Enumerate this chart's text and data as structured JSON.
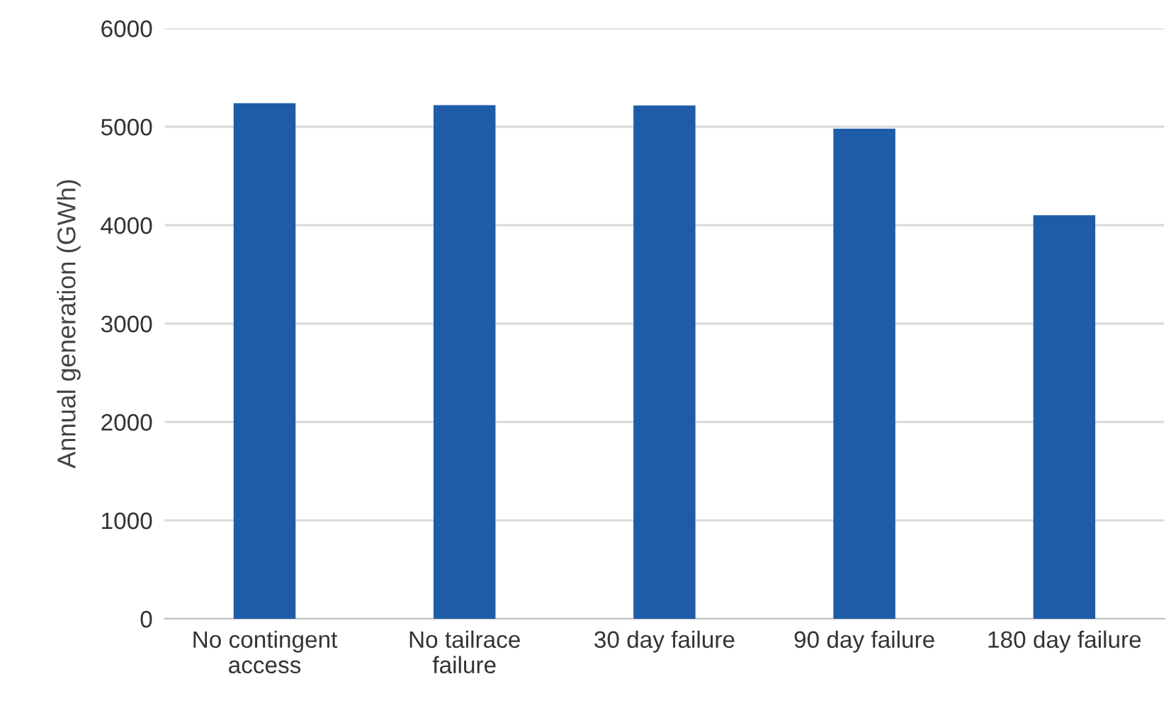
{
  "chart_data": {
    "type": "bar",
    "ylabel": "Annual generation (GWh)",
    "categories": [
      "No contingent\naccess",
      "No tailrace\nfailure",
      "30 day failure",
      "90 day failure",
      "180 day failure"
    ],
    "values": [
      5240,
      5220,
      5215,
      4980,
      4100
    ],
    "color": "#1f5ca8",
    "ylim": [
      0,
      6000
    ],
    "yticks": [
      0,
      1000,
      2000,
      3000,
      4000,
      5000,
      6000
    ],
    "grid": "y",
    "legend": false
  }
}
